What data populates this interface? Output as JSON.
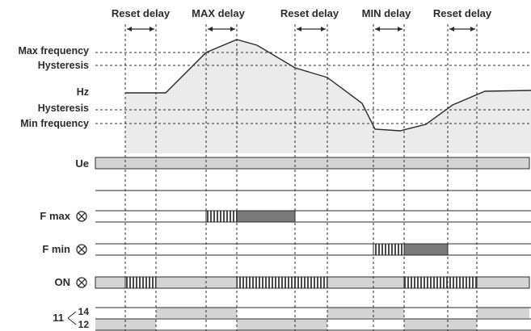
{
  "top_labels": {
    "reset_delay_1": "Reset delay",
    "max_delay": "MAX delay",
    "reset_delay_2": "Reset delay",
    "min_delay": "MIN delay",
    "reset_delay_3": "Reset delay"
  },
  "freq_labels": {
    "max_frequency": "Max frequency",
    "hysteresis_upper": "Hysteresis",
    "hz": "Hz",
    "hysteresis_lower": "Hysteresis",
    "min_frequency": "Min frequency"
  },
  "row_labels": {
    "ue": "Ue",
    "f_max": "F max",
    "f_min": "F min",
    "on": "ON",
    "relay": "11",
    "contact_14": "14",
    "contact_12": "12"
  },
  "colors": {
    "curve_fill": "#ebebeb",
    "band_fill": "#d4d4d4",
    "dark_fill": "#7a7a7a",
    "line": "#2b2b2b"
  },
  "icons": {
    "relay_coil": "circled-x-icon"
  }
}
